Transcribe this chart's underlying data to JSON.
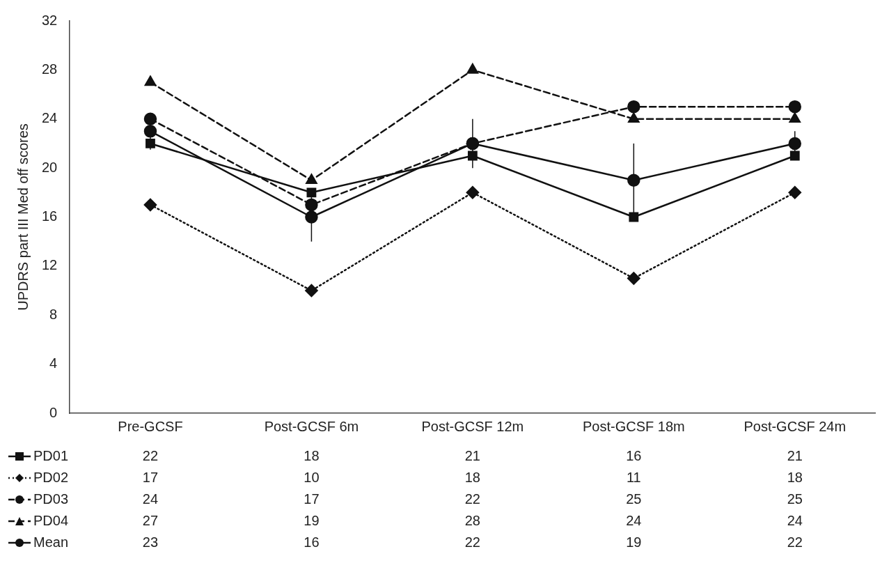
{
  "chart_data": {
    "type": "line",
    "ylabel": "UPDRS part III Med off scores",
    "categories": [
      "Pre-GCSF",
      "Post-GCSF 6m",
      "Post-GCSF 12m",
      "Post-GCSF 18m",
      "Post-GCSF 24m"
    ],
    "series": [
      {
        "name": "PD01",
        "color": "#111111",
        "values": [
          22,
          18,
          21,
          16,
          21
        ],
        "marker": "square",
        "line_style": "solid"
      },
      {
        "name": "PD02",
        "color": "#111111",
        "values": [
          17,
          10,
          18,
          11,
          18
        ],
        "marker": "diamond",
        "line_style": "dotted"
      },
      {
        "name": "PD03",
        "color": "#111111",
        "values": [
          24,
          17,
          22,
          25,
          25
        ],
        "marker": "circle",
        "line_style": "dashed"
      },
      {
        "name": "PD04",
        "color": "#111111",
        "values": [
          27,
          19,
          28,
          24,
          24
        ],
        "marker": "triangle",
        "line_style": "dashed"
      },
      {
        "name": "Mean",
        "color": "#111111",
        "values": [
          23,
          16,
          22,
          19,
          22
        ],
        "marker": "circle",
        "line_style": "solid",
        "errors": [
          1.5,
          2,
          2,
          3,
          1
        ]
      }
    ],
    "ylim": [
      0,
      32
    ],
    "yticks": [
      0,
      4,
      8,
      12,
      16,
      20,
      24,
      28,
      32
    ],
    "data_labels": true,
    "legend": "bottom",
    "grid": false
  }
}
